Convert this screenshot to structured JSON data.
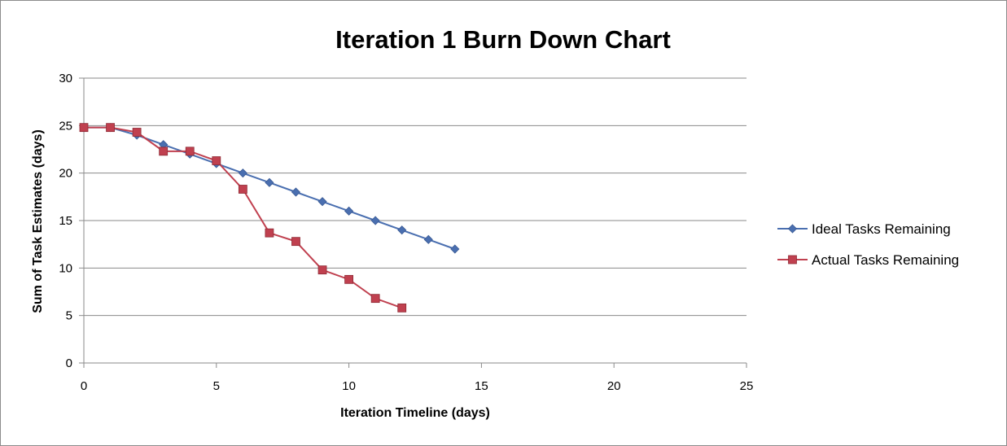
{
  "chart_data": {
    "type": "line",
    "title": "Iteration 1 Burn Down Chart",
    "xlabel": "Iteration Timeline (days)",
    "ylabel": "Sum of Task Estimates (days)",
    "xlim": [
      0,
      25
    ],
    "ylim": [
      0,
      30
    ],
    "x_ticks": [
      0,
      5,
      10,
      15,
      20,
      25
    ],
    "y_ticks": [
      0,
      5,
      10,
      15,
      20,
      25,
      30
    ],
    "grid": "horizontal",
    "legend_position": "right",
    "series": [
      {
        "name": "Ideal Tasks Remaining",
        "color": "#4a6fb0",
        "marker": "diamond",
        "x": [
          0,
          1,
          2,
          3,
          4,
          5,
          6,
          7,
          8,
          9,
          10,
          11,
          12,
          13,
          14
        ],
        "values": [
          24.8,
          24.8,
          24.0,
          23.0,
          22.0,
          21.0,
          20.0,
          19.0,
          18.0,
          17.0,
          16.0,
          15.0,
          14.0,
          13.0,
          12.0
        ]
      },
      {
        "name": "Actual Tasks Remaining",
        "color": "#c0404f",
        "marker": "square",
        "x": [
          0,
          1,
          2,
          3,
          4,
          5,
          6,
          7,
          8,
          9,
          10,
          11,
          12
        ],
        "values": [
          24.8,
          24.8,
          24.3,
          22.3,
          22.3,
          21.3,
          18.3,
          13.7,
          12.8,
          9.8,
          8.8,
          6.8,
          5.8
        ]
      }
    ]
  }
}
